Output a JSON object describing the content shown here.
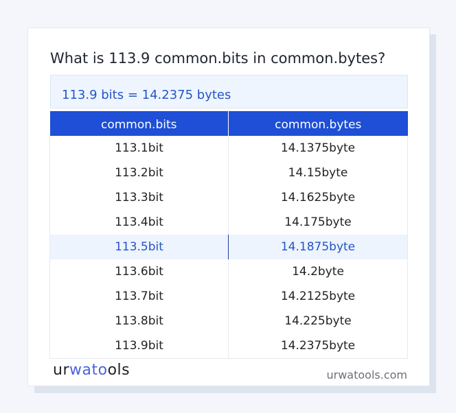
{
  "title": "What is 113.9 common.bits in common.bytes?",
  "result": "113.9 bits = 14.2375 bytes",
  "table": {
    "headers": [
      "common.bits",
      "common.bytes"
    ],
    "rows": [
      [
        "113.1bit",
        "14.1375byte"
      ],
      [
        "113.2bit",
        "14.15byte"
      ],
      [
        "113.3bit",
        "14.1625byte"
      ],
      [
        "113.4bit",
        "14.175byte"
      ],
      [
        "113.5bit",
        "14.1875byte"
      ],
      [
        "113.6bit",
        "14.2byte"
      ],
      [
        "113.7bit",
        "14.2125byte"
      ],
      [
        "113.8bit",
        "14.225byte"
      ],
      [
        "113.9bit",
        "14.2375byte"
      ]
    ],
    "highlighted_row": 4
  },
  "logo": {
    "a": "ur",
    "b": "wato",
    "c": "ols"
  },
  "site": "urwatools.com",
  "colors": {
    "accent": "#1e4fd6",
    "highlight_bg": "#edf4fd"
  }
}
